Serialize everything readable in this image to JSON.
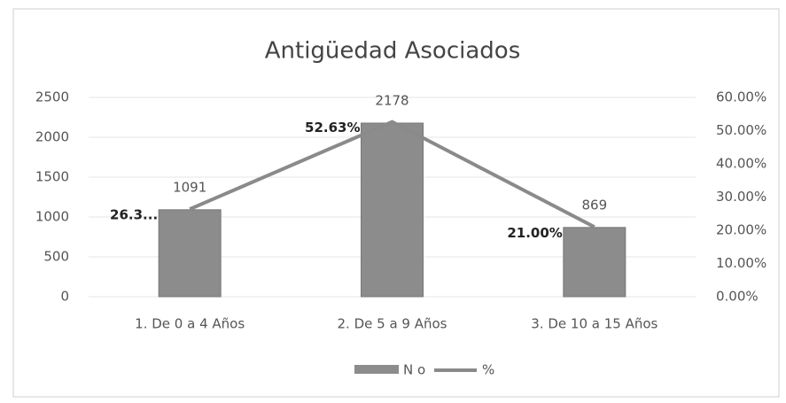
{
  "chart_data": {
    "type": "bar_line",
    "title": "Antigüedad Asociados",
    "categories": [
      "1. De 0 a 4 Años",
      "2. De 5 a 9 Años",
      "3. De 10 a 15 Años"
    ],
    "series": [
      {
        "name": "N o",
        "color": "#8c8c8c",
        "values": [
          1091,
          2178,
          869
        ]
      },
      {
        "name": "%",
        "color": "#8a8a8a",
        "axis": "y2",
        "values": [
          26.37,
          52.63,
          21.0
        ],
        "value_labels": [
          "26.3...",
          "52.63%",
          "21.00%"
        ]
      }
    ],
    "ylim": [
      0,
      2500
    ],
    "yticks": [
      0,
      500,
      1000,
      1500,
      2000,
      2500
    ],
    "y2lim": [
      0,
      60
    ],
    "y2ticks": [
      {
        "value": 0,
        "label": "0.00%"
      },
      {
        "value": 10,
        "label": "10.00%"
      },
      {
        "value": 20,
        "label": "20.00%"
      },
      {
        "value": 30,
        "label": "30.00%"
      },
      {
        "value": 40,
        "label": "40.00%"
      },
      {
        "value": 50,
        "label": "50.00%"
      },
      {
        "value": 60,
        "label": "60.00%"
      }
    ],
    "grid": true,
    "legend": "bottom"
  }
}
